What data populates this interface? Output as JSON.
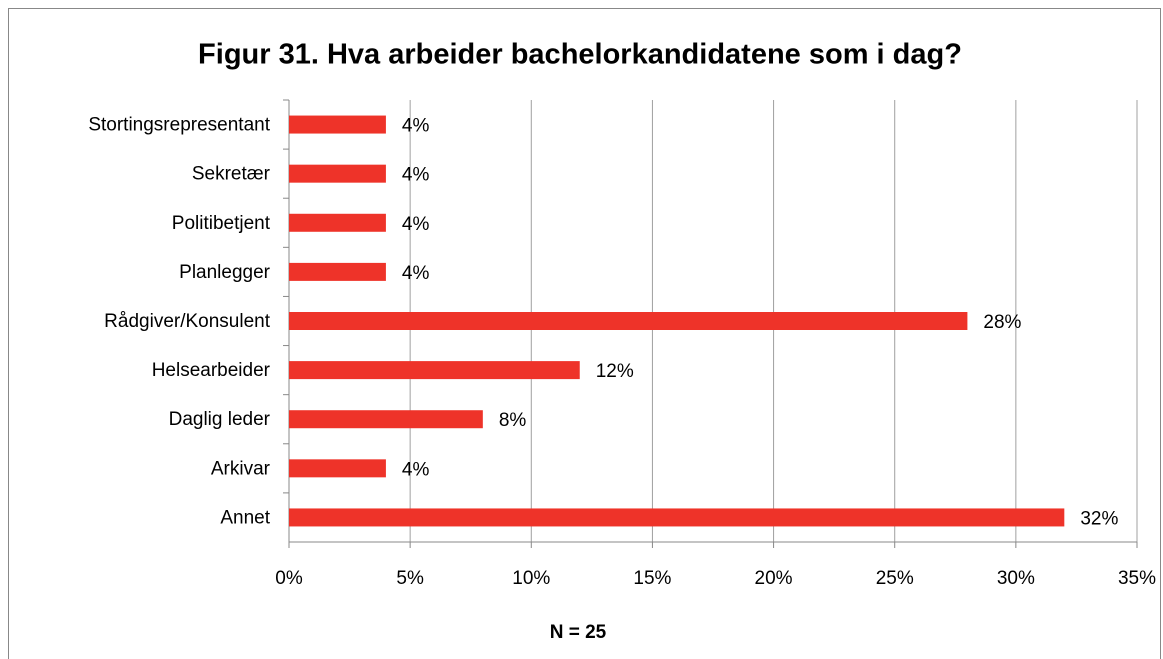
{
  "chart_data": {
    "type": "bar",
    "orientation": "horizontal",
    "title": "Figur 31. Hva arbeider bachelorkandidatene som i dag?",
    "x_label": "N = 25",
    "categories": [
      "Stortingsrepresentant",
      "Sekretær",
      "Politibetjent",
      "Planlegger",
      "Rådgiver/Konsulent",
      "Helsearbeider",
      "Daglig leder",
      "Arkivar",
      "Annet"
    ],
    "values": [
      4,
      4,
      4,
      4,
      28,
      12,
      8,
      4,
      32
    ],
    "value_labels": [
      "4%",
      "4%",
      "4%",
      "4%",
      "28%",
      "12%",
      "8%",
      "4%",
      "32%"
    ],
    "color": "#ee3329",
    "xlim": [
      0,
      35
    ],
    "xticks": [
      {
        "value": 0,
        "label": "0%"
      },
      {
        "value": 5,
        "label": "5%"
      },
      {
        "value": 10,
        "label": "10%"
      },
      {
        "value": 15,
        "label": "15%"
      },
      {
        "value": 20,
        "label": "20%"
      },
      {
        "value": 25,
        "label": "25%"
      },
      {
        "value": 30,
        "label": "30%"
      },
      {
        "value": 35,
        "label": "35%"
      }
    ],
    "grid": true
  }
}
